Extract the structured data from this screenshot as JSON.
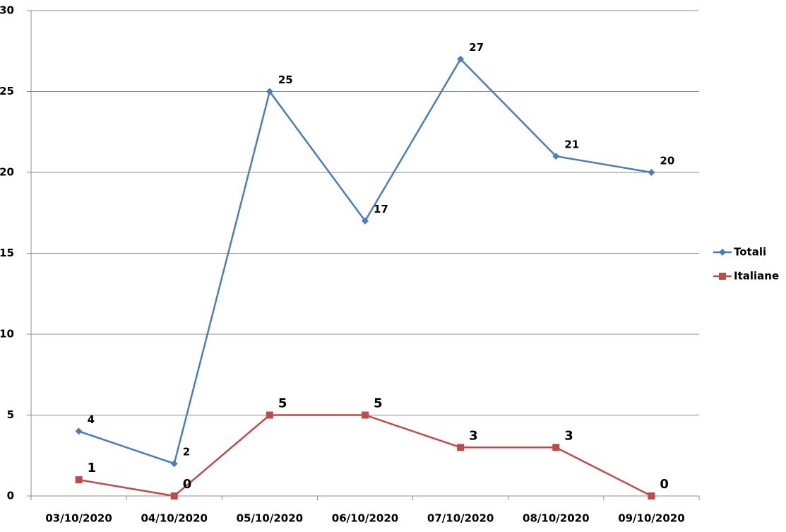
{
  "chart_data": {
    "type": "line",
    "categories": [
      "03/10/2020",
      "04/10/2020",
      "05/10/2020",
      "06/10/2020",
      "07/10/2020",
      "08/10/2020",
      "09/10/2020"
    ],
    "series": [
      {
        "name": "Totali",
        "color": "#4a7ebb",
        "marker": "diamond",
        "values": [
          4,
          2,
          25,
          17,
          27,
          21,
          20
        ]
      },
      {
        "name": "Italiane",
        "color": "#be4b48",
        "marker": "square",
        "values": [
          1,
          0,
          5,
          5,
          3,
          3,
          0
        ]
      }
    ],
    "ylim": [
      0,
      30
    ],
    "yticks": [
      0,
      5,
      10,
      15,
      20,
      25,
      30
    ],
    "grid": true,
    "legend": "right"
  }
}
